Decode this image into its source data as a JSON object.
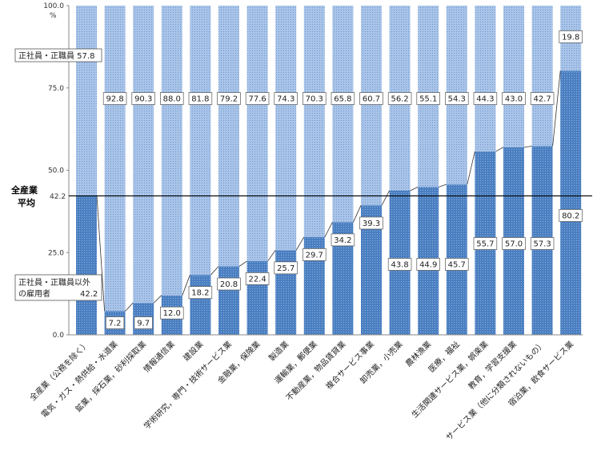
{
  "chart_data": {
    "type": "bar",
    "stacked": true,
    "percent_stacked": true,
    "unit": "%",
    "ylim": [
      0,
      100
    ],
    "yticks": [
      "0.0",
      "25.0",
      "50.0",
      "75.0",
      "100.0"
    ],
    "grid": false,
    "categories": [
      "全産業（公務を除く）",
      "電気・ガス・熱供給・水道業",
      "鉱業，採石業，砂利採取業",
      "情報通信業",
      "建設業",
      "学術研究，専門・技術サービス業",
      "金融業，保険業",
      "製造業",
      "運輸業，郵便業",
      "不動産業，物品賃貸業",
      "複合サービス事業",
      "卸売業，小売業",
      "農林漁業",
      "医療，福祉",
      "生活関連サービス業，娯楽業",
      "教育，学習支援業",
      "サービス業（他に分類されないもの）",
      "宿泊業，飲食サービス業"
    ],
    "series": [
      {
        "name": "正社員・正職員以外の雇用者",
        "color": "#4a7fc1",
        "values": [
          42.2,
          7.2,
          9.7,
          12.0,
          18.2,
          20.8,
          22.4,
          25.7,
          29.7,
          34.2,
          39.3,
          43.8,
          44.9,
          45.7,
          55.7,
          57.0,
          57.3,
          80.2
        ],
        "labels": [
          "",
          "7.2",
          "9.7",
          "12.0",
          "18.2",
          "20.8",
          "22.4",
          "25.7",
          "29.7",
          "34.2",
          "39.3",
          "43.8",
          "44.9",
          "45.7",
          "55.7",
          "57.0",
          "57.3",
          "80.2"
        ]
      },
      {
        "name": "正社員・正職員",
        "color": "#9dbbe3",
        "values": [
          57.8,
          92.8,
          90.3,
          88.0,
          81.8,
          79.2,
          77.6,
          74.3,
          70.3,
          65.8,
          60.7,
          56.2,
          55.1,
          54.3,
          44.3,
          43.0,
          42.7,
          19.8
        ],
        "labels": [
          "",
          "92.8",
          "90.3",
          "88.0",
          "81.8",
          "79.2",
          "77.6",
          "74.3",
          "70.3",
          "65.8",
          "60.7",
          "56.2",
          "55.1",
          "54.3",
          "44.3",
          "43.0",
          "42.7",
          "19.8"
        ]
      }
    ],
    "average": {
      "value": 42.2,
      "label_line1": "全産業",
      "label_line2": "平均",
      "value_text": "42.2"
    },
    "annotations": {
      "upper_text": "正社員・正職員 57.8",
      "lower_line1": "正社員・正職員以外",
      "lower_line2": "の雇用者",
      "lower_value": "42.2"
    }
  }
}
